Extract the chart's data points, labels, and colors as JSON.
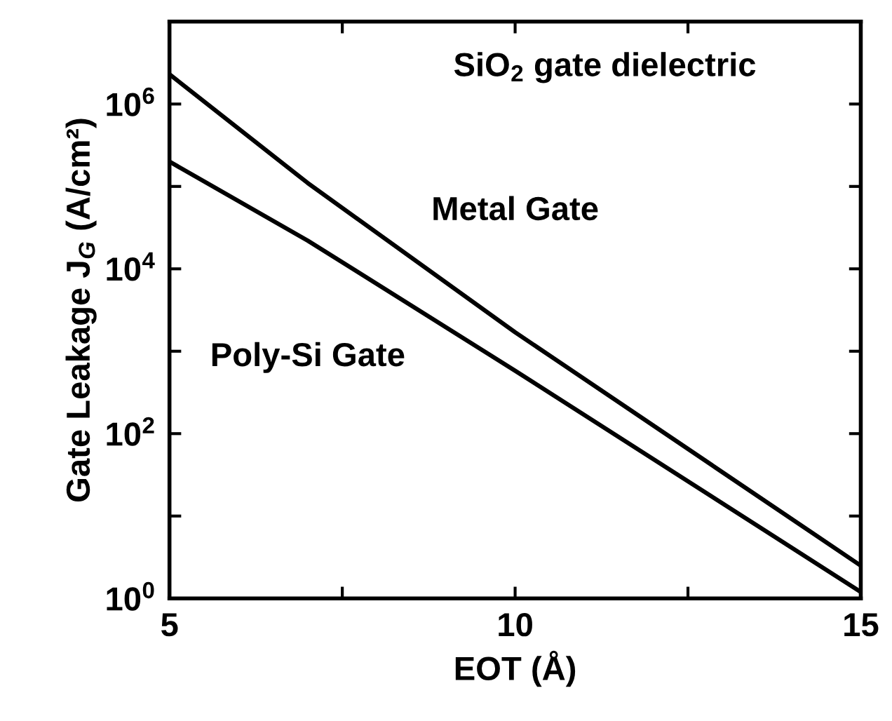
{
  "chart_data": {
    "type": "line",
    "xlabel": "EOT (Å)",
    "ylabel": "Gate Leakage J$_{G}$ (A/cm²)",
    "log": "y",
    "xlim": [
      5,
      15
    ],
    "ylim": [
      1,
      10000000
    ],
    "xticks": [
      5,
      {
        "value": 7.5,
        "label": null
      },
      10,
      {
        "value": 12.5,
        "label": null
      },
      15
    ],
    "yticks": [
      {
        "value": 1,
        "label": "10$^{0}$"
      },
      {
        "value": 10,
        "label": null
      },
      {
        "value": 100,
        "label": "10$^{2}$"
      },
      {
        "value": 1000,
        "label": null
      },
      {
        "value": 10000,
        "label": "10$^{4}$"
      },
      {
        "value": 100000,
        "label": null
      },
      {
        "value": 1000000,
        "label": "10$^{6}$"
      }
    ],
    "grid": false,
    "legend": false,
    "marker": "none",
    "line_style": "solid",
    "series": [
      {
        "name": "Metal Gate",
        "color": "#000000",
        "x": [
          5,
          7,
          10,
          15
        ],
        "values": [
          2300000,
          110000,
          1700,
          2.5
        ]
      },
      {
        "name": "Poly-Si Gate",
        "color": "#000000",
        "x": [
          5,
          7,
          10,
          15
        ],
        "values": [
          200000,
          22000,
          580,
          1.2
        ]
      }
    ],
    "annotations": [
      "SiO$_{2}$ gate dielectric"
    ]
  }
}
